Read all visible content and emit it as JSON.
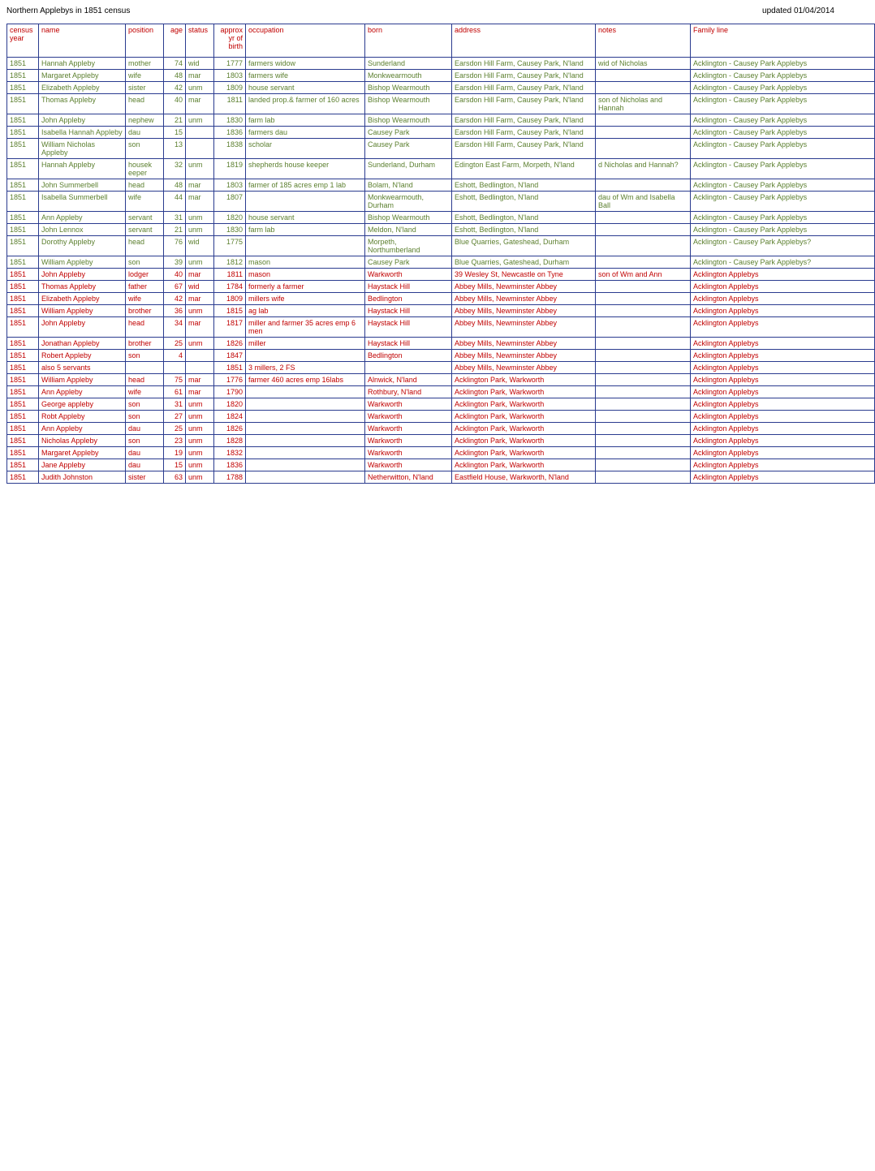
{
  "header": {
    "left": "Northern Applebys in 1851 census",
    "right": "updated 01/04/2014"
  },
  "columns": [
    "census year",
    "name",
    "position",
    "age",
    "status",
    "approx yr of birth",
    "occupation",
    "born",
    "address",
    "notes",
    "Family line"
  ],
  "families": [
    {
      "color": "#5b7f2e",
      "rows": [
        [
          "1851",
          "Hannah Appleby",
          "mother",
          "74",
          "wid",
          "1777",
          "farmers widow",
          "Sunderland",
          "Earsdon Hill Farm, Causey Park, N'land",
          "wid of Nicholas",
          "Acklington - Causey Park Applebys"
        ],
        [
          "1851",
          "Margaret Appleby",
          "wife",
          "48",
          "mar",
          "1803",
          "farmers wife",
          "Monkwearmouth",
          "Earsdon Hill Farm, Causey Park, N'land",
          "",
          "Acklington - Causey Park Applebys"
        ],
        [
          "1851",
          "Elizabeth Appleby",
          "sister",
          "42",
          "unm",
          "1809",
          "house servant",
          "Bishop Wearmouth",
          "Earsdon Hill Farm, Causey Park, N'land",
          "",
          "Acklington - Causey Park Applebys"
        ],
        [
          "1851",
          "Thomas Appleby",
          "head",
          "40",
          "mar",
          "1811",
          "landed prop.& farmer of 160 acres",
          "Bishop Wearmouth",
          "Earsdon Hill Farm, Causey Park, N'land",
          "son of Nicholas and Hannah",
          "Acklington - Causey Park Applebys"
        ],
        [
          "1851",
          "John Appleby",
          "nephew",
          "21",
          "unm",
          "1830",
          "farm lab",
          "Bishop Wearmouth",
          "Earsdon Hill Farm, Causey Park, N'land",
          "",
          "Acklington - Causey Park Applebys"
        ],
        [
          "1851",
          "Isabella Hannah Appleby",
          "dau",
          "15",
          "",
          "1836",
          "farmers dau",
          "Causey Park",
          "Earsdon Hill Farm, Causey Park, N'land",
          "",
          "Acklington - Causey Park Applebys"
        ],
        [
          "1851",
          "William Nicholas Appleby",
          "son",
          "13",
          "",
          "1838",
          "scholar",
          "Causey Park",
          "Earsdon Hill Farm, Causey Park, N'land",
          "",
          "Acklington - Causey Park Applebys"
        ],
        [
          "1851",
          "Hannah Appleby",
          "housek eeper",
          "32",
          "unm",
          "1819",
          "shepherds house keeper",
          "Sunderland, Durham",
          "Edington East Farm, Morpeth, N'land",
          "d Nicholas and Hannah?",
          "Acklington - Causey Park Applebys"
        ],
        [
          "1851",
          "John Summerbell",
          "head",
          "48",
          "mar",
          "1803",
          "farmer of 185 acres emp 1 lab",
          "Bolam, N'land",
          "Eshott, Bedlington, N'land",
          "",
          "Acklington - Causey Park Applebys"
        ],
        [
          "1851",
          "Isabella Summerbell",
          "wife",
          "44",
          "mar",
          "1807",
          "",
          "Monkwearmouth, Durham",
          "Eshott, Bedlington, N'land",
          "dau of Wm and Isabella Ball",
          "Acklington - Causey Park Applebys"
        ],
        [
          "1851",
          "Ann Appleby",
          "servant",
          "31",
          "unm",
          "1820",
          "house servant",
          "Bishop Wearmouth",
          "Eshott, Bedlington, N'land",
          "",
          "Acklington - Causey Park Applebys"
        ],
        [
          "1851",
          "John Lennox",
          "servant",
          "21",
          "unm",
          "1830",
          "farm lab",
          "Meldon, N'land",
          "Eshott, Bedlington, N'land",
          "",
          "Acklington - Causey Park Applebys"
        ],
        [
          "1851",
          "Dorothy Appleby",
          "head",
          "76",
          "wid",
          "1775",
          "",
          "Morpeth, Northumberland",
          "Blue Quarries, Gateshead, Durham",
          "",
          "Acklington - Causey Park Applebys?"
        ],
        [
          "1851",
          "William Appleby",
          "son",
          "39",
          "unm",
          "1812",
          "mason",
          "Causey Park",
          "Blue Quarries, Gateshead, Durham",
          "",
          "Acklington - Causey Park Applebys?"
        ]
      ]
    },
    {
      "color": "#c00000",
      "rows": [
        [
          "1851",
          "John Appleby",
          "lodger",
          "40",
          "mar",
          "1811",
          "mason",
          "Warkworth",
          "39 Wesley St, Newcastle on Tyne",
          "son of Wm and Ann",
          "Acklington Applebys"
        ],
        [
          "1851",
          "Thomas Appleby",
          "father",
          "67",
          "wid",
          "1784",
          "formerly a farmer",
          "Haystack Hill",
          "Abbey Mills, Newminster Abbey",
          "",
          "Acklington Applebys"
        ],
        [
          "1851",
          "Elizabeth Appleby",
          "wife",
          "42",
          "mar",
          "1809",
          "millers wife",
          "Bedlington",
          "Abbey Mills, Newminster Abbey",
          "",
          "Acklington Applebys"
        ],
        [
          "1851",
          "William Appleby",
          "brother",
          "36",
          "unm",
          "1815",
          "ag lab",
          "Haystack Hill",
          "Abbey Mills, Newminster Abbey",
          "",
          "Acklington Applebys"
        ],
        [
          "1851",
          "John Appleby",
          "head",
          "34",
          "mar",
          "1817",
          "miller and farmer 35 acres emp 6 men",
          "Haystack Hill",
          "Abbey Mills, Newminster Abbey",
          "",
          "Acklington Applebys"
        ],
        [
          "1851",
          "Jonathan Appleby",
          "brother",
          "25",
          "unm",
          "1826",
          "miller",
          "Haystack Hill",
          "Abbey Mills, Newminster Abbey",
          "",
          "Acklington Applebys"
        ],
        [
          "1851",
          "Robert Appleby",
          "son",
          "4",
          "",
          "1847",
          "",
          "Bedlington",
          "Abbey Mills, Newminster Abbey",
          "",
          "Acklington Applebys"
        ],
        [
          "1851",
          "also 5 servants",
          "",
          "",
          "",
          "1851",
          "3 millers, 2 FS",
          "",
          "Abbey Mills, Newminster Abbey",
          "",
          "Acklington Applebys"
        ],
        [
          "1851",
          "William Appleby",
          "head",
          "75",
          "mar",
          "1776",
          "farmer 460 acres emp 16labs",
          "Alnwick, N'land",
          "Acklington Park, Warkworth",
          "",
          "Acklington Applebys"
        ],
        [
          "1851",
          "Ann Appleby",
          "wife",
          "61",
          "mar",
          "1790",
          "",
          "Rothbury, N'land",
          "Acklington Park, Warkworth",
          "",
          "Acklington Applebys"
        ],
        [
          "1851",
          "George appleby",
          "son",
          "31",
          "unm",
          "1820",
          "",
          "Warkworth",
          "Acklington Park, Warkworth",
          "",
          "Acklington Applebys"
        ],
        [
          "1851",
          "Robt Appleby",
          "son",
          "27",
          "unm",
          "1824",
          "",
          "Warkworth",
          "Acklington Park, Warkworth",
          "",
          "Acklington Applebys"
        ],
        [
          "1851",
          "Ann Appleby",
          "dau",
          "25",
          "unm",
          "1826",
          "",
          "Warkworth",
          "Acklington Park, Warkworth",
          "",
          "Acklington Applebys"
        ],
        [
          "1851",
          "Nicholas Appleby",
          "son",
          "23",
          "unm",
          "1828",
          "",
          "Warkworth",
          "Acklington Park, Warkworth",
          "",
          "Acklington Applebys"
        ],
        [
          "1851",
          "Margaret Appleby",
          "dau",
          "19",
          "unm",
          "1832",
          "",
          "Warkworth",
          "Acklington Park, Warkworth",
          "",
          "Acklington Applebys"
        ],
        [
          "1851",
          "Jane Appleby",
          "dau",
          "15",
          "unm",
          "1836",
          "",
          "Warkworth",
          "Acklington Park, Warkworth",
          "",
          "Acklington Applebys"
        ],
        [
          "1851",
          "Judith Johnston",
          "sister",
          "63",
          "unm",
          "1788",
          "",
          "Netherwitton, N'land",
          "Eastfield House, Warkworth, N'land",
          "",
          "Acklington Applebys"
        ]
      ]
    }
  ],
  "col_classes": [
    "col-year",
    "col-name",
    "col-pos",
    "col-age",
    "col-status",
    "col-yrof",
    "col-occ",
    "col-born",
    "col-addr",
    "col-notes",
    "col-fam"
  ]
}
